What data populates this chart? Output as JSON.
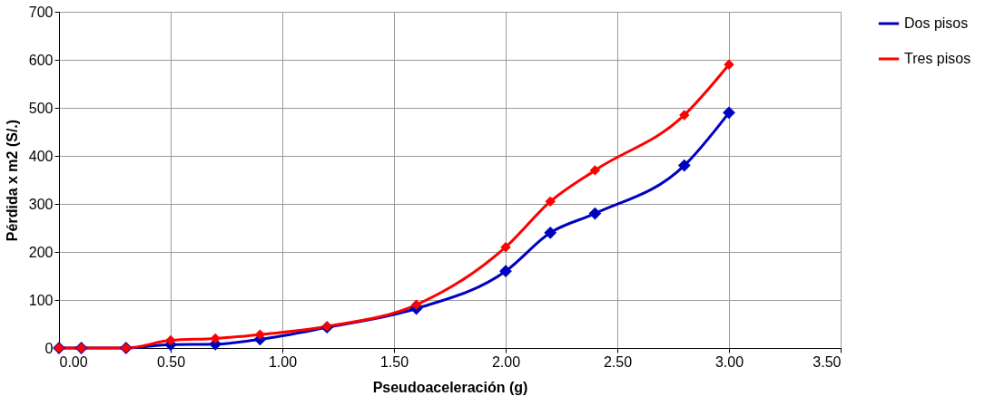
{
  "chart_data": {
    "type": "line",
    "xlabel": "Pseudoaceleración (g)",
    "ylabel": "Pérdida x m2 (S/.)",
    "x": [
      0,
      0.1,
      0.3,
      0.5,
      0.7,
      0.9,
      1.2,
      1.6,
      2.0,
      2.2,
      2.4,
      2.8,
      3.0
    ],
    "series": [
      {
        "name": "Dos pisos",
        "color": "#0000c0",
        "values": [
          0,
          0,
          0,
          7,
          8,
          18,
          43,
          82,
          160,
          240,
          280,
          380,
          490
        ]
      },
      {
        "name": "Tres pisos",
        "color": "#ff0000",
        "values": [
          0,
          0,
          0,
          16,
          20,
          28,
          45,
          90,
          210,
          305,
          370,
          485,
          590
        ]
      }
    ],
    "xlim": [
      0,
      3.5
    ],
    "xticks": [
      {
        "value": 0,
        "label": "0.00"
      },
      {
        "value": 0.5,
        "label": "0.50"
      },
      {
        "value": 1,
        "label": "1.00"
      },
      {
        "value": 1.5,
        "label": "1.50"
      },
      {
        "value": 2,
        "label": "2.00"
      },
      {
        "value": 2.5,
        "label": "2.50"
      },
      {
        "value": 3,
        "label": "3.00"
      },
      {
        "value": 3.5,
        "label": "3.50"
      }
    ],
    "ylim": [
      0,
      700
    ],
    "yticks": [
      0,
      100,
      200,
      300,
      400,
      500,
      600,
      700
    ],
    "grid": true,
    "legend": "right",
    "marker": "diamond",
    "line_style": "solid"
  }
}
